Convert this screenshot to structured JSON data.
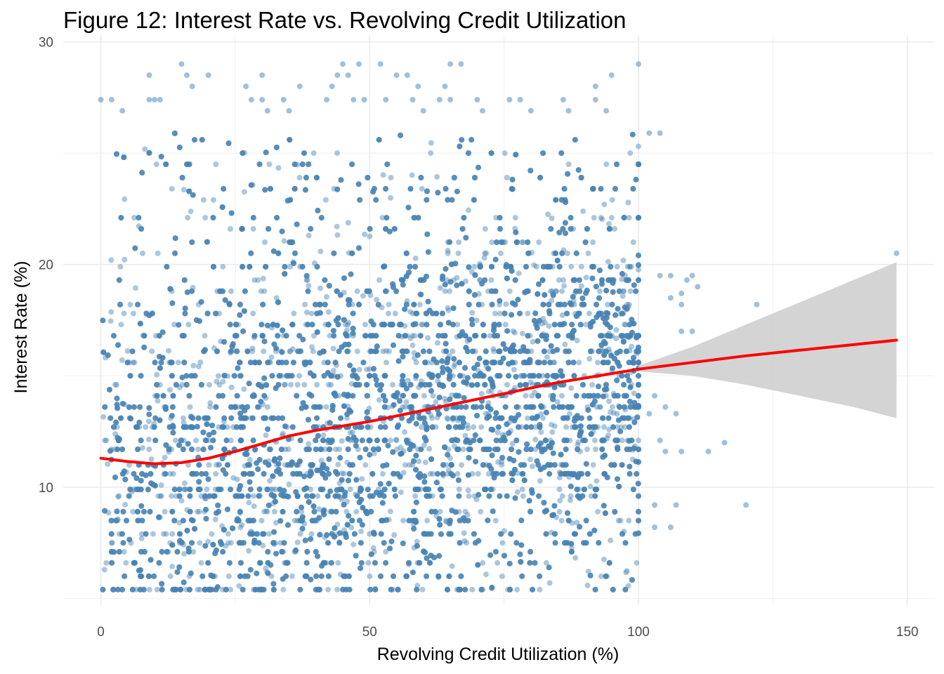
{
  "chart_data": {
    "type": "scatter",
    "title": "Figure 12: Interest Rate vs. Revolving Credit Utilization",
    "xlabel": "Revolving Credit Utilization (%)",
    "ylabel": "Interest Rate (%)",
    "xlim": [
      -7,
      155
    ],
    "ylim": [
      4.7,
      30.3
    ],
    "x_ticks": [
      0,
      50,
      100,
      150
    ],
    "y_ticks": [
      10,
      20,
      30
    ],
    "grid": true,
    "legend": "none",
    "colors": {
      "points": "#4682b4",
      "trend": "#ff0000",
      "band": "#cccccc",
      "grid": "#ebebeb"
    },
    "series": [
      {
        "kind": "points",
        "note_density": "dense cloud for x in 0-100, y in 5-26",
        "points": [
          [
            0,
            27.4
          ],
          [
            2,
            27.4
          ],
          [
            4,
            26.9
          ],
          [
            9,
            28.5
          ],
          [
            9,
            27.4
          ],
          [
            10,
            27.4
          ],
          [
            11,
            27.4
          ],
          [
            15,
            29
          ],
          [
            16,
            28.5
          ],
          [
            17,
            28
          ],
          [
            20,
            28.5
          ],
          [
            27,
            28
          ],
          [
            28,
            27.4
          ],
          [
            30,
            28.5
          ],
          [
            30,
            27.4
          ],
          [
            31,
            26.9
          ],
          [
            34,
            27.4
          ],
          [
            35,
            26.9
          ],
          [
            37,
            28
          ],
          [
            42,
            27.4
          ],
          [
            43,
            28
          ],
          [
            44,
            28.5
          ],
          [
            45,
            29
          ],
          [
            46,
            28.5
          ],
          [
            47,
            27.4
          ],
          [
            48,
            29
          ],
          [
            49,
            27.4
          ],
          [
            52,
            29
          ],
          [
            53,
            27.4
          ],
          [
            55,
            28.5
          ],
          [
            57,
            28.5
          ],
          [
            58,
            27.4
          ],
          [
            59,
            28
          ],
          [
            60,
            26.9
          ],
          [
            63,
            27.4
          ],
          [
            64,
            28
          ],
          [
            65,
            27.4
          ],
          [
            65,
            29
          ],
          [
            67,
            29
          ],
          [
            70,
            27.4
          ],
          [
            71,
            26.9
          ],
          [
            76,
            27.4
          ],
          [
            78,
            27.4
          ],
          [
            80,
            26.9
          ],
          [
            86,
            27.4
          ],
          [
            87,
            26.9
          ],
          [
            92,
            28
          ],
          [
            92,
            27.4
          ],
          [
            94,
            26.9
          ],
          [
            95,
            28.5
          ],
          [
            100,
            29
          ],
          [
            102,
            25.9
          ],
          [
            104,
            25.9
          ],
          [
            104,
            19.5
          ],
          [
            106,
            19.5
          ],
          [
            106,
            18.5
          ],
          [
            108,
            18.2
          ],
          [
            108,
            18.7
          ],
          [
            109,
            19.3
          ],
          [
            110,
            19.5
          ],
          [
            111,
            19
          ],
          [
            108,
            17
          ],
          [
            110,
            17
          ],
          [
            122,
            18.2
          ],
          [
            148,
            20.5
          ],
          [
            105,
            13.6
          ],
          [
            107,
            13.3
          ],
          [
            105,
            11.6
          ],
          [
            108,
            11.6
          ],
          [
            113,
            11.6
          ],
          [
            116,
            12
          ],
          [
            104,
            12.1
          ],
          [
            103,
            9.2
          ],
          [
            107,
            9.2
          ],
          [
            120,
            9.2
          ],
          [
            103,
            8.2
          ],
          [
            106,
            8.2
          ],
          [
            102,
            13.3
          ],
          [
            103,
            14.1
          ]
        ]
      },
      {
        "kind": "trend",
        "name": "",
        "x": [
          0,
          5,
          10,
          15,
          20,
          25,
          30,
          35,
          40,
          45,
          50,
          55,
          60,
          65,
          70,
          75,
          80,
          85,
          90,
          95,
          100,
          110,
          120,
          130,
          140,
          148
        ],
        "y": [
          11.3,
          11.15,
          11.05,
          11.1,
          11.3,
          11.6,
          11.95,
          12.3,
          12.55,
          12.75,
          12.95,
          13.2,
          13.45,
          13.7,
          13.95,
          14.2,
          14.45,
          14.7,
          14.9,
          15.1,
          15.3,
          15.6,
          15.9,
          16.15,
          16.4,
          16.6
        ],
        "band_x": [
          100,
          110,
          120,
          130,
          140,
          148
        ],
        "band_lower": [
          15.2,
          15.0,
          14.6,
          14.1,
          13.6,
          13.1
        ],
        "band_upper": [
          15.45,
          16.3,
          17.3,
          18.3,
          19.3,
          20.1
        ]
      }
    ]
  }
}
